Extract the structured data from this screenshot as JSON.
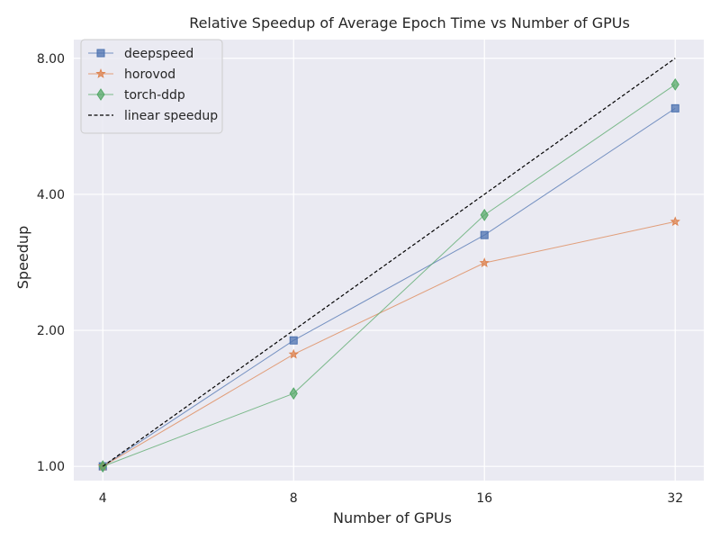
{
  "chart_data": {
    "type": "line",
    "title": "Relative Speedup of Average Epoch Time vs Number of GPUs",
    "xlabel": "Number of GPUs",
    "ylabel": "Speedup",
    "x_scale": "log2",
    "y_scale": "log2",
    "x": [
      4,
      8,
      16,
      32
    ],
    "x_tick_labels": [
      "4",
      "8",
      "16",
      "32"
    ],
    "y_ticks": [
      1,
      2,
      4,
      8
    ],
    "y_tick_labels": [
      "1.00",
      "2.00",
      "4.00",
      "8.00"
    ],
    "xlim": [
      3.6,
      35.5
    ],
    "ylim": [
      0.93,
      8.8
    ],
    "grid": true,
    "legend_position": "top-left",
    "series": [
      {
        "name": "deepspeed",
        "values": [
          1.0,
          1.9,
          3.25,
          6.2
        ],
        "color": "#4c72b0",
        "marker": "square",
        "line_style": "solid"
      },
      {
        "name": "horovod",
        "values": [
          1.0,
          1.77,
          2.82,
          3.48
        ],
        "color": "#dd8452",
        "marker": "star",
        "line_style": "solid"
      },
      {
        "name": "torch-ddp",
        "values": [
          1.0,
          1.45,
          3.6,
          7.0
        ],
        "color": "#55a868",
        "marker": "diamond",
        "line_style": "solid"
      },
      {
        "name": "linear speedup",
        "values": [
          1,
          2,
          4,
          8
        ],
        "color": "#000000",
        "marker": "none",
        "line_style": "dashed"
      }
    ]
  }
}
